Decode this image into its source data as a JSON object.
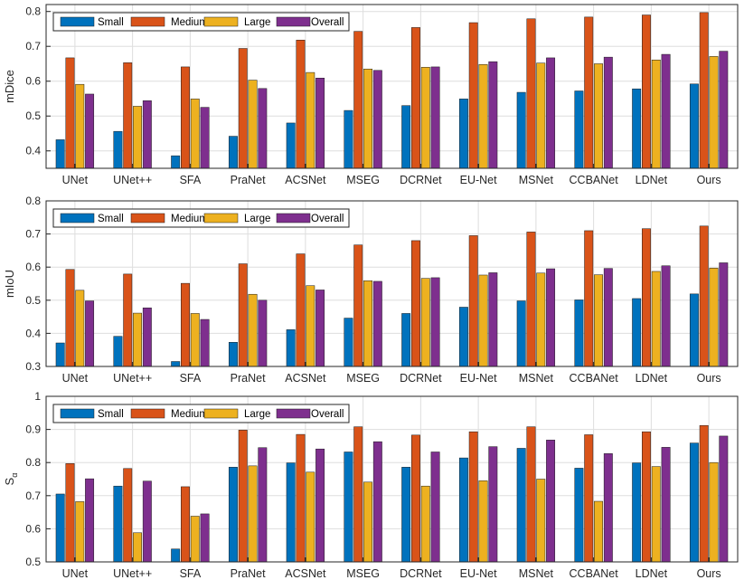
{
  "colors": {
    "series": [
      "#0072BD",
      "#D95319",
      "#EDB120",
      "#7E2F8E"
    ],
    "grid": "#dedede",
    "axis": "#262626"
  },
  "chart_data": [
    {
      "type": "bar",
      "ylabel": "mDice",
      "ylabel_sub": "",
      "ylim": [
        0.35,
        0.82
      ],
      "yticks": [
        "0.4",
        "0.5",
        "0.6",
        "0.7",
        "0.8"
      ],
      "grid": true,
      "legend": "top-left",
      "categories": [
        "UNet",
        "UNet++",
        "SFA",
        "PraNet",
        "ACSNet",
        "MSEG",
        "DCRNet",
        "EU-Net",
        "MSNet",
        "CCBANet",
        "LDNet",
        "Ours"
      ],
      "series": [
        {
          "name": "Small",
          "values": [
            0.432,
            0.456,
            0.386,
            0.442,
            0.48,
            0.516,
            0.53,
            0.549,
            0.568,
            0.572,
            0.578,
            0.592
          ]
        },
        {
          "name": "Medium",
          "values": [
            0.667,
            0.653,
            0.641,
            0.694,
            0.718,
            0.743,
            0.754,
            0.768,
            0.779,
            0.784,
            0.79,
            0.797
          ]
        },
        {
          "name": "Large",
          "values": [
            0.591,
            0.528,
            0.549,
            0.603,
            0.625,
            0.635,
            0.64,
            0.648,
            0.652,
            0.65,
            0.661,
            0.671
          ]
        },
        {
          "name": "Overall",
          "values": [
            0.563,
            0.544,
            0.525,
            0.579,
            0.609,
            0.631,
            0.641,
            0.656,
            0.667,
            0.669,
            0.677,
            0.686
          ]
        }
      ]
    },
    {
      "type": "bar",
      "ylabel": "mIoU",
      "ylabel_sub": "",
      "ylim": [
        0.3,
        0.8
      ],
      "yticks": [
        "0.3",
        "0.4",
        "0.5",
        "0.6",
        "0.7",
        "0.8"
      ],
      "grid": true,
      "legend": "top-left",
      "categories": [
        "UNet",
        "UNet++",
        "SFA",
        "PraNet",
        "ACSNet",
        "MSEG",
        "DCRNet",
        "EU-Net",
        "MSNet",
        "CCBANet",
        "LDNet",
        "Ours"
      ],
      "series": [
        {
          "name": "Small",
          "values": [
            0.371,
            0.391,
            0.315,
            0.373,
            0.411,
            0.446,
            0.46,
            0.479,
            0.498,
            0.501,
            0.505,
            0.519
          ]
        },
        {
          "name": "Medium",
          "values": [
            0.593,
            0.579,
            0.551,
            0.61,
            0.64,
            0.667,
            0.68,
            0.695,
            0.706,
            0.71,
            0.716,
            0.724
          ]
        },
        {
          "name": "Large",
          "values": [
            0.53,
            0.461,
            0.46,
            0.518,
            0.544,
            0.559,
            0.566,
            0.576,
            0.582,
            0.577,
            0.587,
            0.597
          ]
        },
        {
          "name": "Overall",
          "values": [
            0.498,
            0.477,
            0.442,
            0.5,
            0.531,
            0.557,
            0.568,
            0.583,
            0.595,
            0.596,
            0.604,
            0.613
          ]
        }
      ]
    },
    {
      "type": "bar",
      "ylabel": "S",
      "ylabel_sub": "α",
      "ylim": [
        0.5,
        1.0
      ],
      "yticks": [
        "0.5",
        "0.6",
        "0.7",
        "0.8",
        "0.9",
        "1"
      ],
      "grid": true,
      "legend": "top-left",
      "categories": [
        "UNet",
        "UNet++",
        "SFA",
        "PraNet",
        "ACSNet",
        "MSEG",
        "DCRNet",
        "EU-Net",
        "MSNet",
        "CCBANet",
        "LDNet",
        "Ours"
      ],
      "series": [
        {
          "name": "Small",
          "values": [
            0.705,
            0.729,
            0.539,
            0.786,
            0.799,
            0.832,
            0.786,
            0.814,
            0.843,
            0.783,
            0.799,
            0.859
          ]
        },
        {
          "name": "Medium",
          "values": [
            0.797,
            0.782,
            0.727,
            0.898,
            0.885,
            0.908,
            0.883,
            0.893,
            0.908,
            0.884,
            0.893,
            0.912
          ]
        },
        {
          "name": "Large",
          "values": [
            0.682,
            0.588,
            0.638,
            0.79,
            0.771,
            0.741,
            0.729,
            0.745,
            0.75,
            0.683,
            0.788,
            0.8
          ]
        },
        {
          "name": "Overall",
          "values": [
            0.751,
            0.744,
            0.645,
            0.845,
            0.841,
            0.863,
            0.832,
            0.848,
            0.868,
            0.827,
            0.846,
            0.88
          ]
        }
      ]
    }
  ]
}
